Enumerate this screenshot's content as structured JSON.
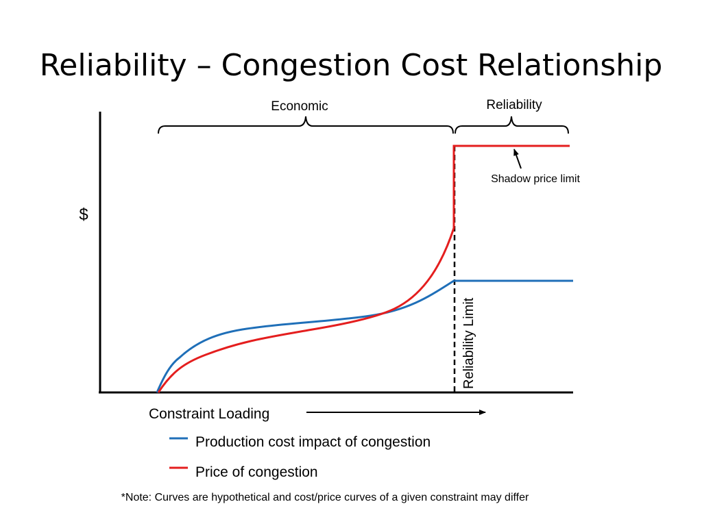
{
  "title": "Reliability – Congestion Cost Relationship",
  "colors": {
    "production_cost": "#1f6fb8",
    "price": "#e41e1e",
    "axis": "#000000"
  },
  "diagram": {
    "region_economic": "Economic",
    "region_reliability": "Reliability",
    "shadow_price_label": "Shadow price limit",
    "y_axis_label": "$",
    "x_axis_label": "Constraint Loading",
    "limit_label": "Reliability Limit"
  },
  "legend": [
    {
      "label": "Production cost impact of congestion",
      "color": "#1f6fb8"
    },
    {
      "label": "Price of congestion",
      "color": "#e41e1e"
    }
  ],
  "note": "*Note: Curves are hypothetical and cost/price curves of a given constraint may differ"
}
